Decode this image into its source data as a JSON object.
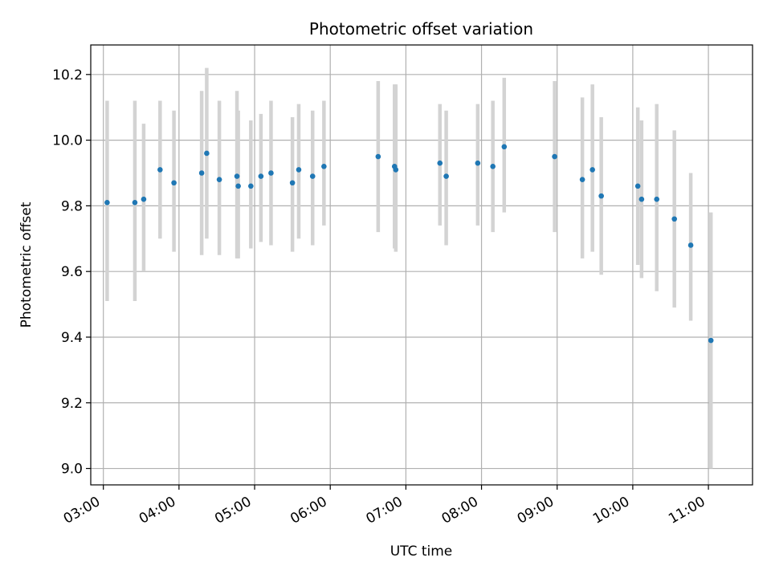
{
  "chart_data": {
    "type": "scatter",
    "title": "Photometric offset variation",
    "xlabel": "UTC time",
    "ylabel": "Photometric offset",
    "x_unit": "UTC hours",
    "xlim": [
      "02:50",
      "11:35"
    ],
    "ylim": [
      8.95,
      10.29
    ],
    "x_ticks": [
      "03:00",
      "04:00",
      "05:00",
      "06:00",
      "07:00",
      "08:00",
      "09:00",
      "10:00",
      "11:00"
    ],
    "y_ticks": [
      "9.0",
      "9.2",
      "9.4",
      "9.6",
      "9.8",
      "10.0",
      "10.2"
    ],
    "grid": true,
    "marker_color": "#1f77b4",
    "errorbar_color": "#d3d3d3",
    "series": [
      {
        "points": [
          {
            "x": "03:03",
            "y": 9.81,
            "ylow": 9.51,
            "yhigh": 10.12
          },
          {
            "x": "03:25",
            "y": 9.81,
            "ylow": 9.51,
            "yhigh": 10.12
          },
          {
            "x": "03:32",
            "y": 9.82,
            "ylow": 9.6,
            "yhigh": 10.05
          },
          {
            "x": "03:45",
            "y": 9.91,
            "ylow": 9.7,
            "yhigh": 10.12
          },
          {
            "x": "03:56",
            "y": 9.87,
            "ylow": 9.66,
            "yhigh": 10.09
          },
          {
            "x": "04:18",
            "y": 9.9,
            "ylow": 9.65,
            "yhigh": 10.15
          },
          {
            "x": "04:22",
            "y": 9.96,
            "ylow": 9.7,
            "yhigh": 10.22
          },
          {
            "x": "04:32",
            "y": 9.88,
            "ylow": 9.65,
            "yhigh": 10.12
          },
          {
            "x": "04:46",
            "y": 9.89,
            "ylow": 9.64,
            "yhigh": 10.15
          },
          {
            "x": "04:47",
            "y": 9.86,
            "ylow": 9.64,
            "yhigh": 10.09
          },
          {
            "x": "04:57",
            "y": 9.86,
            "ylow": 9.67,
            "yhigh": 10.06
          },
          {
            "x": "05:05",
            "y": 9.89,
            "ylow": 9.69,
            "yhigh": 10.08
          },
          {
            "x": "05:13",
            "y": 9.9,
            "ylow": 9.68,
            "yhigh": 10.12
          },
          {
            "x": "05:30",
            "y": 9.87,
            "ylow": 9.66,
            "yhigh": 10.07
          },
          {
            "x": "05:35",
            "y": 9.91,
            "ylow": 9.7,
            "yhigh": 10.11
          },
          {
            "x": "05:46",
            "y": 9.89,
            "ylow": 9.68,
            "yhigh": 10.09
          },
          {
            "x": "05:55",
            "y": 9.92,
            "ylow": 9.74,
            "yhigh": 10.12
          },
          {
            "x": "06:38",
            "y": 9.95,
            "ylow": 9.72,
            "yhigh": 10.18
          },
          {
            "x": "06:51",
            "y": 9.92,
            "ylow": 9.67,
            "yhigh": 10.17
          },
          {
            "x": "06:52",
            "y": 9.91,
            "ylow": 9.66,
            "yhigh": 10.17
          },
          {
            "x": "07:27",
            "y": 9.93,
            "ylow": 9.74,
            "yhigh": 10.11
          },
          {
            "x": "07:32",
            "y": 9.89,
            "ylow": 9.68,
            "yhigh": 10.09
          },
          {
            "x": "07:57",
            "y": 9.93,
            "ylow": 9.74,
            "yhigh": 10.11
          },
          {
            "x": "08:09",
            "y": 9.92,
            "ylow": 9.72,
            "yhigh": 10.12
          },
          {
            "x": "08:18",
            "y": 9.98,
            "ylow": 9.78,
            "yhigh": 10.19
          },
          {
            "x": "08:58",
            "y": 9.95,
            "ylow": 9.72,
            "yhigh": 10.18
          },
          {
            "x": "09:20",
            "y": 9.88,
            "ylow": 9.64,
            "yhigh": 10.13
          },
          {
            "x": "09:28",
            "y": 9.91,
            "ylow": 9.66,
            "yhigh": 10.17
          },
          {
            "x": "09:35",
            "y": 9.83,
            "ylow": 9.59,
            "yhigh": 10.07
          },
          {
            "x": "10:04",
            "y": 9.86,
            "ylow": 9.62,
            "yhigh": 10.1
          },
          {
            "x": "10:07",
            "y": 9.82,
            "ylow": 9.58,
            "yhigh": 10.06
          },
          {
            "x": "10:19",
            "y": 9.82,
            "ylow": 9.54,
            "yhigh": 10.11
          },
          {
            "x": "10:33",
            "y": 9.76,
            "ylow": 9.49,
            "yhigh": 10.03
          },
          {
            "x": "10:46",
            "y": 9.68,
            "ylow": 9.45,
            "yhigh": 9.9
          },
          {
            "x": "11:02",
            "y": 9.39,
            "ylow": 9.0,
            "yhigh": 9.78
          }
        ]
      }
    ]
  }
}
